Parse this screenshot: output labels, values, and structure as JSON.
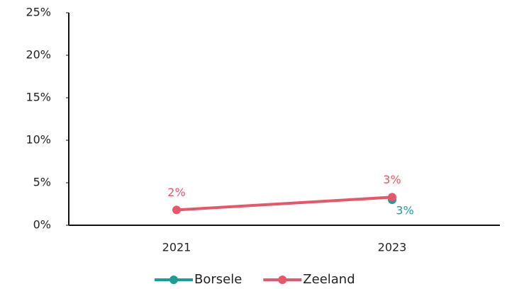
{
  "chart_data": {
    "type": "line",
    "categories": [
      "2021",
      "2023"
    ],
    "series": [
      {
        "name": "Borsele",
        "color": "#1a9e9a",
        "values": [
          null,
          3.0
        ],
        "value_labels": [
          null,
          "3%"
        ]
      },
      {
        "name": "Zeeland",
        "color": "#e8566a",
        "values": [
          1.8,
          3.3
        ],
        "value_labels": [
          "2%",
          "3%"
        ]
      }
    ],
    "ylim": [
      0,
      25
    ],
    "yticks": [
      {
        "value": 0,
        "label": "0%"
      },
      {
        "value": 5,
        "label": "5%"
      },
      {
        "value": 10,
        "label": "10%"
      },
      {
        "value": 15,
        "label": "15%"
      },
      {
        "value": 20,
        "label": "20%"
      },
      {
        "value": 25,
        "label": "25%"
      }
    ],
    "legend": "bottom"
  }
}
